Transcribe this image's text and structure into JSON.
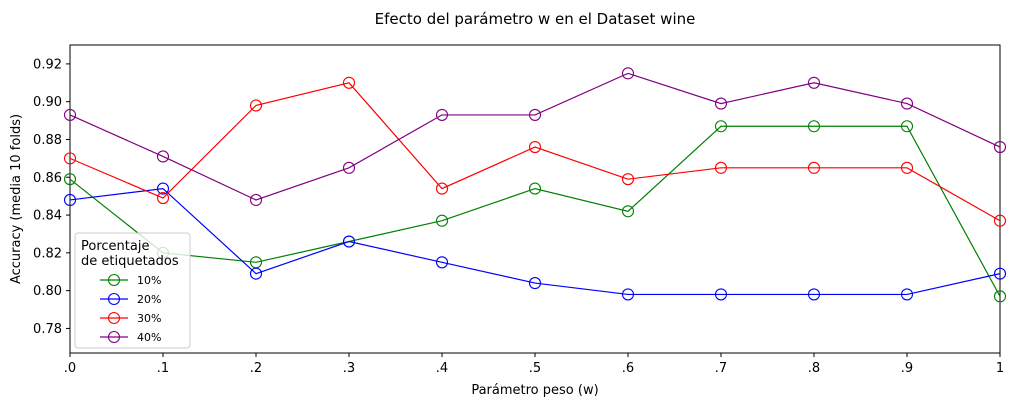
{
  "chart_data": {
    "type": "line",
    "title": "Efecto del parámetro w en el Dataset wine",
    "xlabel": "Parámetro peso (w)",
    "ylabel": "Accuracy (media 10 folds)",
    "x": [
      0.0,
      0.1,
      0.2,
      0.3,
      0.4,
      0.5,
      0.6,
      0.7,
      0.8,
      0.9,
      1.0
    ],
    "x_tick_labels": [
      ".0",
      ".1",
      ".2",
      ".3",
      ".4",
      ".5",
      ".6",
      ".7",
      ".8",
      ".9",
      "1"
    ],
    "xlim": [
      0.0,
      1.0
    ],
    "ylim": [
      0.767,
      0.93
    ],
    "y_ticks": [
      0.78,
      0.8,
      0.82,
      0.84,
      0.86,
      0.88,
      0.9,
      0.92
    ],
    "y_tick_labels": [
      "0.78",
      "0.80",
      "0.82",
      "0.84",
      "0.86",
      "0.88",
      "0.90",
      "0.92"
    ],
    "grid": false,
    "marker": "open-circle",
    "legend": {
      "title_lines": [
        "Porcentaje",
        "de etiquetados"
      ],
      "placement": "lower-left"
    },
    "series": [
      {
        "name": "10%",
        "color": "#008000",
        "values": [
          0.859,
          0.82,
          0.815,
          0.826,
          0.837,
          0.854,
          0.842,
          0.887,
          0.887,
          0.887,
          0.797
        ]
      },
      {
        "name": "20%",
        "color": "#0000ff",
        "values": [
          0.848,
          0.854,
          0.809,
          0.826,
          0.815,
          0.804,
          0.798,
          0.798,
          0.798,
          0.798,
          0.809
        ]
      },
      {
        "name": "30%",
        "color": "#ff0000",
        "values": [
          0.87,
          0.849,
          0.898,
          0.91,
          0.854,
          0.876,
          0.859,
          0.865,
          0.865,
          0.865,
          0.837
        ]
      },
      {
        "name": "40%",
        "color": "#800080",
        "values": [
          0.893,
          0.871,
          0.848,
          0.865,
          0.893,
          0.893,
          0.915,
          0.899,
          0.91,
          0.899,
          0.876
        ]
      }
    ]
  }
}
